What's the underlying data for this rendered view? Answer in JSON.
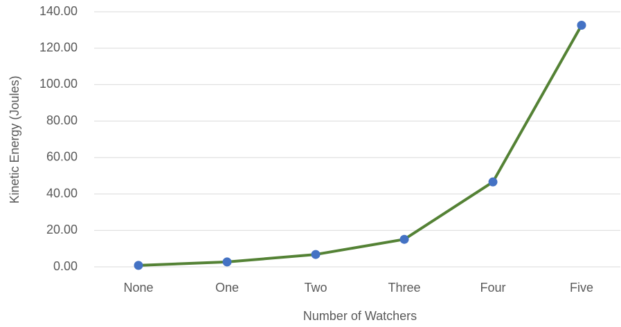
{
  "chart_data": {
    "type": "line",
    "x_label": "Number of Watchers",
    "y_label": "Kinetic Energy (Joules)",
    "categories": [
      "None",
      "One",
      "Two",
      "Three",
      "Four",
      "Five"
    ],
    "series": [
      {
        "name": "Kinetic Energy",
        "color": "#548235",
        "marker_color": "#4472c4",
        "values": [
          0.8,
          2.7,
          6.8,
          15.1,
          46.6,
          132.6
        ]
      }
    ],
    "ylim": [
      0,
      140
    ],
    "yticks": [
      {
        "value": 0,
        "label": "0.00"
      },
      {
        "value": 20,
        "label": "20.00"
      },
      {
        "value": 40,
        "label": "40.00"
      },
      {
        "value": 60,
        "label": "60.00"
      },
      {
        "value": 80,
        "label": "80.00"
      },
      {
        "value": 100,
        "label": "100.00"
      },
      {
        "value": 120,
        "label": "120.00"
      },
      {
        "value": 140,
        "label": "140.00"
      }
    ],
    "grid": true
  }
}
